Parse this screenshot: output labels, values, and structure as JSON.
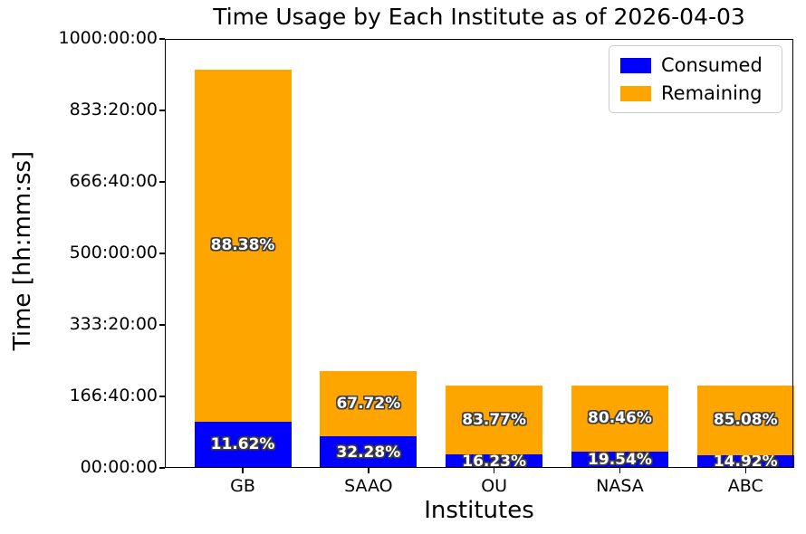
{
  "chart_data": {
    "type": "bar",
    "stacked": true,
    "title": "Time Usage by Each Institute as of 2026-04-03",
    "xlabel": "Institutes",
    "ylabel": "Time [hh:mm:ss]",
    "categories": [
      "GB",
      "SAAO",
      "OU",
      "NASA",
      "ABC"
    ],
    "total_hours_est": [
      929,
      226,
      193,
      193,
      193
    ],
    "series": [
      {
        "name": "Consumed",
        "color": "#0000ff",
        "pct": [
          11.62,
          32.28,
          16.23,
          19.54,
          14.92
        ],
        "labels": [
          "11.62%",
          "32.28%",
          "16.23%",
          "19.54%",
          "14.92%"
        ]
      },
      {
        "name": "Remaining",
        "color": "#ffa500",
        "pct": [
          88.38,
          67.72,
          83.77,
          80.46,
          85.08
        ],
        "labels": [
          "88.38%",
          "67.72%",
          "83.77%",
          "80.46%",
          "85.08%"
        ]
      }
    ],
    "y_axis": {
      "lim_hours": [
        0,
        1000
      ],
      "tick_labels": [
        "00:00:00",
        "166:40:00",
        "333:20:00",
        "500:00:00",
        "666:40:00",
        "833:20:00",
        "1000:00:00"
      ]
    },
    "legend": {
      "position": "upper right",
      "entries": [
        {
          "label": "Consumed",
          "color": "#0000ff"
        },
        {
          "label": "Remaining",
          "color": "#ffa500"
        }
      ]
    },
    "grid": false,
    "bar_label_text_color": "#ffffff",
    "bar_label_outline_color": "#3d3d3d"
  }
}
